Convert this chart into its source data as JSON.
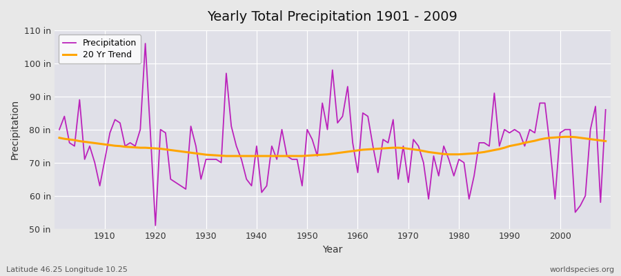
{
  "title": "Yearly Total Precipitation 1901 - 2009",
  "xlabel": "Year",
  "ylabel": "Precipitation",
  "lat_lon_label": "Latitude 46.25 Longitude 10.25",
  "watermark": "worldspecies.org",
  "ylim": [
    50,
    110
  ],
  "yticks": [
    50,
    60,
    70,
    80,
    90,
    100,
    110
  ],
  "ytick_labels": [
    "50 in",
    "60 in",
    "70 in",
    "80 in",
    "90 in",
    "100 in",
    "110 in"
  ],
  "precip_color": "#bb22bb",
  "trend_color": "#ffa500",
  "fig_bg_color": "#e8e8e8",
  "plot_bg_color": "#e0e0e8",
  "years": [
    1901,
    1902,
    1903,
    1904,
    1905,
    1906,
    1907,
    1908,
    1909,
    1910,
    1911,
    1912,
    1913,
    1914,
    1915,
    1916,
    1917,
    1918,
    1919,
    1920,
    1921,
    1922,
    1923,
    1924,
    1925,
    1926,
    1927,
    1928,
    1929,
    1930,
    1931,
    1932,
    1933,
    1934,
    1935,
    1936,
    1937,
    1938,
    1939,
    1940,
    1941,
    1942,
    1943,
    1944,
    1945,
    1946,
    1947,
    1948,
    1949,
    1950,
    1951,
    1952,
    1953,
    1954,
    1955,
    1956,
    1957,
    1958,
    1959,
    1960,
    1961,
    1962,
    1963,
    1964,
    1965,
    1966,
    1967,
    1968,
    1969,
    1970,
    1971,
    1972,
    1973,
    1974,
    1975,
    1976,
    1977,
    1978,
    1979,
    1980,
    1981,
    1982,
    1983,
    1984,
    1985,
    1986,
    1987,
    1988,
    1989,
    1990,
    1991,
    1992,
    1993,
    1994,
    1995,
    1996,
    1997,
    1998,
    1999,
    2000,
    2001,
    2002,
    2003,
    2004,
    2005,
    2006,
    2007,
    2008,
    2009
  ],
  "precipitation": [
    80,
    84,
    76,
    75,
    89,
    71,
    75,
    70,
    63,
    71,
    79,
    83,
    82,
    75,
    76,
    75,
    80,
    106,
    79,
    51,
    80,
    79,
    65,
    64,
    63,
    62,
    81,
    75,
    65,
    71,
    71,
    71,
    70,
    97,
    81,
    75,
    71,
    65,
    63,
    75,
    61,
    63,
    75,
    71,
    80,
    72,
    71,
    71,
    63,
    80,
    77,
    72,
    88,
    80,
    98,
    82,
    84,
    93,
    76,
    67,
    85,
    84,
    75,
    67,
    77,
    76,
    83,
    65,
    75,
    64,
    77,
    75,
    70,
    59,
    72,
    66,
    75,
    71,
    66,
    71,
    70,
    59,
    66,
    76,
    76,
    75,
    91,
    75,
    80,
    79,
    80,
    79,
    75,
    80,
    79,
    88,
    88,
    75,
    59,
    79,
    80,
    80,
    55,
    57,
    60,
    80,
    87,
    58,
    86
  ],
  "trend": [
    77.5,
    77.2,
    77.0,
    76.8,
    76.5,
    76.3,
    76.1,
    75.9,
    75.7,
    75.5,
    75.3,
    75.1,
    75.0,
    74.8,
    74.7,
    74.6,
    74.5,
    74.5,
    74.4,
    74.3,
    74.2,
    74.0,
    73.8,
    73.6,
    73.4,
    73.2,
    73.0,
    72.8,
    72.6,
    72.4,
    72.3,
    72.2,
    72.1,
    72.0,
    72.0,
    72.0,
    72.0,
    72.0,
    72.0,
    72.0,
    72.0,
    72.0,
    72.0,
    72.0,
    72.0,
    72.0,
    72.0,
    72.0,
    72.0,
    72.1,
    72.2,
    72.3,
    72.4,
    72.5,
    72.7,
    72.9,
    73.1,
    73.3,
    73.5,
    73.7,
    73.9,
    74.0,
    74.1,
    74.2,
    74.3,
    74.4,
    74.5,
    74.5,
    74.4,
    74.2,
    74.0,
    73.8,
    73.5,
    73.2,
    73.0,
    72.8,
    72.6,
    72.5,
    72.5,
    72.5,
    72.6,
    72.7,
    72.8,
    73.0,
    73.2,
    73.5,
    73.8,
    74.1,
    74.5,
    75.0,
    75.3,
    75.6,
    76.0,
    76.3,
    76.6,
    77.0,
    77.3,
    77.5,
    77.6,
    77.7,
    77.8,
    77.8,
    77.7,
    77.5,
    77.3,
    77.1,
    76.9,
    76.7,
    76.5
  ]
}
